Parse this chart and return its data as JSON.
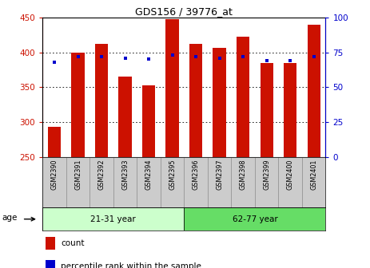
{
  "title": "GDS156 / 39776_at",
  "samples": [
    "GSM2390",
    "GSM2391",
    "GSM2392",
    "GSM2393",
    "GSM2394",
    "GSM2395",
    "GSM2396",
    "GSM2397",
    "GSM2398",
    "GSM2399",
    "GSM2400",
    "GSM2401"
  ],
  "bar_values": [
    293,
    400,
    412,
    365,
    352,
    448,
    412,
    406,
    422,
    385,
    384,
    440
  ],
  "percentile_values": [
    68,
    72,
    72,
    71,
    70,
    73,
    72,
    71,
    72,
    69,
    69,
    72
  ],
  "bar_bottom": 250,
  "ylim_left": [
    250,
    450
  ],
  "ylim_right": [
    0,
    100
  ],
  "yticks_left": [
    250,
    300,
    350,
    400,
    450
  ],
  "yticks_right": [
    0,
    25,
    50,
    75,
    100
  ],
  "groups": [
    {
      "label": "21-31 year",
      "start": 0,
      "end": 6
    },
    {
      "label": "62-77 year",
      "start": 6,
      "end": 12
    }
  ],
  "group_color_1": "#ccffcc",
  "group_color_2": "#66dd66",
  "bar_color": "#cc1100",
  "percentile_color": "#0000cc",
  "bar_width": 0.55,
  "left_tick_color": "#cc1100",
  "right_tick_color": "#0000cc",
  "background_color": "#ffffff",
  "grid_color": "#000000",
  "cell_color": "#cccccc",
  "age_label": "age",
  "legend_count": "count",
  "legend_percentile": "percentile rank within the sample"
}
